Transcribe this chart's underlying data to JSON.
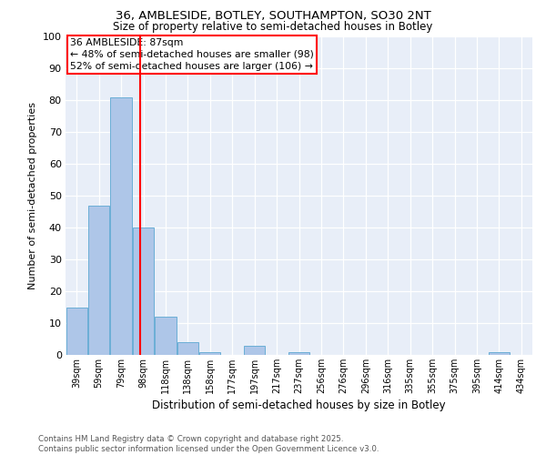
{
  "title1": "36, AMBLESIDE, BOTLEY, SOUTHAMPTON, SO30 2NT",
  "title2": "Size of property relative to semi-detached houses in Botley",
  "xlabel": "Distribution of semi-detached houses by size in Botley",
  "ylabel": "Number of semi-detached properties",
  "categories": [
    "39sqm",
    "59sqm",
    "79sqm",
    "98sqm",
    "118sqm",
    "138sqm",
    "158sqm",
    "177sqm",
    "197sqm",
    "217sqm",
    "237sqm",
    "256sqm",
    "276sqm",
    "296sqm",
    "316sqm",
    "335sqm",
    "355sqm",
    "375sqm",
    "395sqm",
    "414sqm",
    "434sqm"
  ],
  "values": [
    15,
    47,
    81,
    40,
    12,
    4,
    1,
    0,
    3,
    0,
    1,
    0,
    0,
    0,
    0,
    0,
    0,
    0,
    0,
    1,
    0
  ],
  "bar_color": "#aec6e8",
  "bar_edge_color": "#6baed6",
  "vline_x": 2.87,
  "vline_color": "red",
  "annotation_title": "36 AMBLESIDE: 87sqm",
  "annotation_line1": "← 48% of semi-detached houses are smaller (98)",
  "annotation_line2": "52% of semi-detached houses are larger (106) →",
  "annotation_box_color": "red",
  "annotation_fill": "white",
  "ylim": [
    0,
    100
  ],
  "yticks": [
    0,
    10,
    20,
    30,
    40,
    50,
    60,
    70,
    80,
    90,
    100
  ],
  "bg_color": "#e8eef8",
  "footer1": "Contains HM Land Registry data © Crown copyright and database right 2025.",
  "footer2": "Contains public sector information licensed under the Open Government Licence v3.0."
}
